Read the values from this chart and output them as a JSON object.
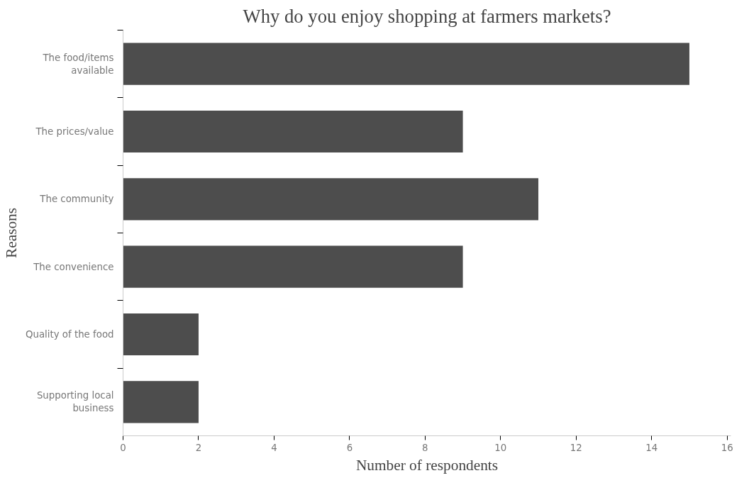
{
  "chart_data": {
    "type": "bar",
    "orientation": "horizontal",
    "title": "Why do you enjoy shopping at farmers markets?",
    "xlabel": "Number of respondents",
    "ylabel": "Reasons",
    "categories": [
      "The food/items available",
      "The prices/value",
      "The community",
      "The convenience",
      "Quality of the food",
      "Supporting local business"
    ],
    "values": [
      15,
      9,
      11,
      9,
      2,
      2
    ],
    "color": "#4d4d4d",
    "xlim": [
      0,
      16.1
    ],
    "xticks": [
      0,
      2,
      4,
      6,
      8,
      10,
      12,
      14,
      16
    ],
    "grid": false
  }
}
